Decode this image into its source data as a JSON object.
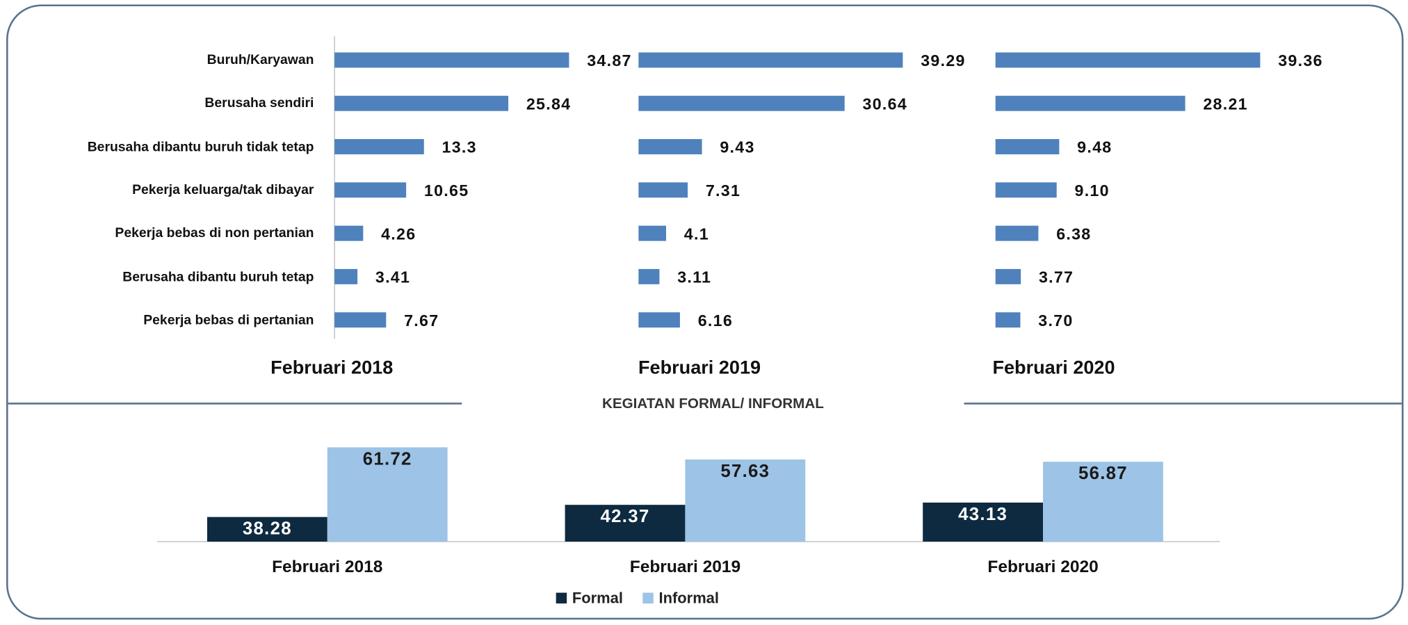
{
  "chart_data": [
    {
      "type": "hbar-panels",
      "categories": [
        "Buruh/Karyawan",
        "Berusaha sendiri",
        "Berusaha dibantu buruh tidak tetap",
        "Pekerja keluarga/tak dibayar",
        "Pekerja bebas di non pertanian",
        "Berusaha dibantu buruh tetap",
        "Pekerja bebas di pertanian"
      ],
      "series": [
        {
          "name": "Februari 2018",
          "color": "#4f81bd",
          "values": [
            34.87,
            25.84,
            13.3,
            10.65,
            4.26,
            3.41,
            7.67
          ]
        },
        {
          "name": "Februari 2019",
          "color": "#4f81bd",
          "values": [
            39.29,
            30.64,
            9.43,
            7.31,
            4.1,
            3.11,
            6.16
          ]
        },
        {
          "name": "Februari 2020",
          "color": "#4f81bd",
          "values": [
            39.36,
            28.21,
            9.48,
            9.1,
            6.38,
            3.77,
            3.7
          ],
          "value_labels": [
            "39.36",
            "28.21",
            "9.48",
            "9.10",
            "6.38",
            "3.77",
            "3.70"
          ]
        }
      ]
    },
    {
      "type": "bar",
      "title": "KEGIATAN FORMAL/ INFORMAL",
      "categories": [
        "Februari 2018",
        "Februari 2019",
        "Februari 2020"
      ],
      "series": [
        {
          "name": "Formal",
          "color": "#0d2a40",
          "label_color": "#ffffff",
          "values": [
            38.28,
            42.37,
            43.13
          ]
        },
        {
          "name": "Informal",
          "color": "#9dc3e6",
          "label_color": "#1a1a1a",
          "values": [
            61.72,
            57.63,
            56.87
          ]
        }
      ],
      "ylim": [
        30,
        65
      ],
      "legend": "bottom"
    }
  ]
}
